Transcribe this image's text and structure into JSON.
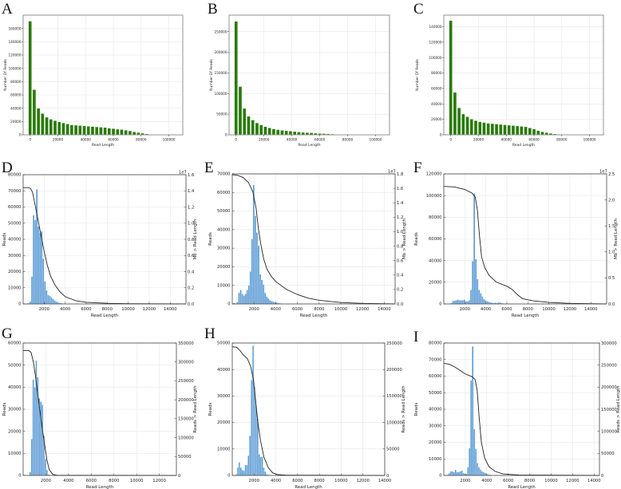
{
  "figure": {
    "panels": [
      {
        "id": "A",
        "letter": "A"
      },
      {
        "id": "B",
        "letter": "B"
      },
      {
        "id": "C",
        "letter": "C"
      },
      {
        "id": "D",
        "letter": "D"
      },
      {
        "id": "E",
        "letter": "E"
      },
      {
        "id": "F",
        "letter": "F"
      },
      {
        "id": "G",
        "letter": "G"
      },
      {
        "id": "H",
        "letter": "H"
      },
      {
        "id": "I",
        "letter": "I"
      }
    ]
  },
  "chart_data": [
    {
      "panel": "A",
      "type": "bar",
      "color": "#2a7a0a",
      "xlabel": "Read Length",
      "ylabel": "Number Of Reads",
      "xlim": [
        -5000,
        110000
      ],
      "ylim": [
        0,
        180000
      ],
      "xticks": [
        0,
        20000,
        40000,
        60000,
        80000,
        100000
      ],
      "yticks": [
        0,
        20000,
        40000,
        60000,
        80000,
        100000,
        120000,
        140000,
        160000
      ],
      "bin_width": 3000,
      "bin_start": 0,
      "values": [
        171000,
        68000,
        40000,
        32000,
        26500,
        23500,
        21500,
        19500,
        18000,
        16500,
        15000,
        14500,
        14000,
        13500,
        13000,
        12500,
        12000,
        11500,
        11000,
        10000,
        9500,
        8500,
        8000,
        7000,
        6000,
        4500,
        3500,
        2500,
        1500,
        1000,
        600,
        300,
        100
      ]
    },
    {
      "panel": "B",
      "type": "bar",
      "color": "#2a7a0a",
      "xlabel": "Read Length",
      "ylabel": "Number Of Reads",
      "xlim": [
        -5000,
        110000
      ],
      "ylim": [
        0,
        290000
      ],
      "xticks": [
        0,
        20000,
        40000,
        60000,
        80000,
        100000
      ],
      "yticks": [
        0,
        50000,
        100000,
        150000,
        200000,
        250000
      ],
      "bin_width": 3000,
      "bin_start": 0,
      "values": [
        275000,
        117000,
        64000,
        45000,
        36000,
        29000,
        24000,
        20000,
        17000,
        14500,
        12500,
        11000,
        10000,
        9000,
        8000,
        7000,
        6000,
        5500,
        5000,
        4000,
        3500,
        3000,
        2500,
        2000,
        1500,
        1000,
        500,
        300,
        100
      ]
    },
    {
      "panel": "C",
      "type": "bar",
      "color": "#2a7a0a",
      "xlabel": "Read Length",
      "ylabel": "Number Of Reads",
      "xlim": [
        -5000,
        110000
      ],
      "ylim": [
        0,
        155000
      ],
      "xticks": [
        0,
        20000,
        40000,
        60000,
        80000,
        100000
      ],
      "yticks": [
        0,
        20000,
        40000,
        60000,
        80000,
        100000,
        120000,
        140000
      ],
      "bin_width": 3000,
      "bin_start": 0,
      "values": [
        148000,
        55000,
        35000,
        27000,
        23500,
        20500,
        18500,
        17000,
        16000,
        15000,
        14500,
        14000,
        13500,
        13000,
        12500,
        12000,
        11500,
        11000,
        10500,
        9000,
        7500,
        5500,
        4000,
        3000,
        2000,
        1200,
        600,
        300,
        100
      ]
    },
    {
      "panel": "D",
      "type": "bar+line",
      "color": "#5b9bd5",
      "xlabel": "Read Length",
      "ylabel": "Reads",
      "y2label": "Mb > Read Length",
      "y2_offset": "1e7",
      "xlim": [
        0,
        15500
      ],
      "ylim": [
        0,
        80000
      ],
      "y2lim": [
        0,
        1.6
      ],
      "xticks": [
        2000,
        4000,
        6000,
        8000,
        10000,
        12000,
        14000
      ],
      "yticks": [
        0,
        10000,
        20000,
        30000,
        40000,
        50000,
        60000,
        70000,
        80000
      ],
      "y2ticks": [
        0.0,
        0.2,
        0.4,
        0.6,
        0.8,
        1.0,
        1.2,
        1.4,
        1.6
      ],
      "bin_width": 155,
      "bin_start": 450,
      "values": [
        500,
        1500,
        17000,
        55000,
        52000,
        71000,
        48000,
        44000,
        45000,
        28000,
        14000,
        8500,
        5500,
        5000,
        4000,
        3000,
        2200,
        1500,
        1000,
        700,
        500,
        350,
        250,
        150,
        100
      ],
      "line": [
        [
          0,
          1.44
        ],
        [
          500,
          1.44
        ],
        [
          700,
          1.43
        ],
        [
          900,
          1.38
        ],
        [
          1100,
          1.25
        ],
        [
          1400,
          1.05
        ],
        [
          1700,
          0.85
        ],
        [
          2000,
          0.65
        ],
        [
          2300,
          0.48
        ],
        [
          2600,
          0.35
        ],
        [
          3000,
          0.24
        ],
        [
          3500,
          0.15
        ],
        [
          4000,
          0.09
        ],
        [
          5000,
          0.04
        ],
        [
          6000,
          0.02
        ],
        [
          8000,
          0.008
        ],
        [
          10000,
          0.003
        ],
        [
          15500,
          0.0
        ]
      ]
    },
    {
      "panel": "E",
      "type": "bar+line",
      "color": "#5b9bd5",
      "xlabel": "Read Length",
      "ylabel": "Reads",
      "y2label": "Mb > Read Length",
      "y2_offset": "1e7",
      "xlim": [
        0,
        15000
      ],
      "ylim": [
        0,
        70000
      ],
      "y2lim": [
        0,
        1.8
      ],
      "xticks": [
        2000,
        4000,
        6000,
        8000,
        10000,
        12000,
        14000
      ],
      "yticks": [
        0,
        10000,
        20000,
        30000,
        40000,
        50000,
        60000,
        70000
      ],
      "y2ticks": [
        0.0,
        0.2,
        0.4,
        0.6,
        0.8,
        1.0,
        1.2,
        1.4,
        1.6,
        1.8
      ],
      "bin_width": 150,
      "bin_start": 100,
      "values": [
        500,
        300,
        1000,
        6000,
        7500,
        5500,
        4500,
        5500,
        7500,
        10000,
        17500,
        35000,
        64000,
        47500,
        38500,
        31500,
        16000,
        13000,
        10500,
        6000,
        4000,
        3000,
        2000,
        1600,
        1300,
        1000,
        800,
        600,
        400,
        300,
        200,
        150,
        100
      ],
      "line": [
        [
          0,
          1.79
        ],
        [
          500,
          1.78
        ],
        [
          1000,
          1.75
        ],
        [
          1500,
          1.68
        ],
        [
          1900,
          1.55
        ],
        [
          2200,
          1.32
        ],
        [
          2400,
          1.05
        ],
        [
          2600,
          0.85
        ],
        [
          2900,
          0.62
        ],
        [
          3200,
          0.48
        ],
        [
          3600,
          0.38
        ],
        [
          4000,
          0.31
        ],
        [
          5000,
          0.2
        ],
        [
          6000,
          0.13
        ],
        [
          7000,
          0.08
        ],
        [
          8000,
          0.05
        ],
        [
          10000,
          0.02
        ],
        [
          12000,
          0.008
        ],
        [
          15000,
          0.0
        ]
      ]
    },
    {
      "panel": "F",
      "type": "bar+line",
      "color": "#5b9bd5",
      "xlabel": "Read Length",
      "ylabel": "Reads",
      "y2label": "Mb > Read Length",
      "y2_offset": "1e7",
      "xlim": [
        0,
        15500
      ],
      "ylim": [
        0,
        120000
      ],
      "y2lim": [
        0,
        2.5
      ],
      "xticks": [
        2000,
        4000,
        6000,
        8000,
        10000,
        12000,
        14000
      ],
      "yticks": [
        0,
        20000,
        40000,
        60000,
        80000,
        100000,
        120000
      ],
      "y2ticks": [
        0.0,
        0.5,
        1.0,
        1.5,
        2.0,
        2.5
      ],
      "bin_width": 155,
      "bin_start": 650,
      "values": [
        1000,
        3000,
        3000,
        3500,
        4000,
        3500,
        3500,
        3500,
        4000,
        2500,
        2500,
        3500,
        13000,
        39500,
        102000,
        41500,
        23000,
        13000,
        10000,
        7000,
        4500,
        3500,
        2500,
        2000,
        1500,
        1200,
        1000,
        1200,
        800,
        1500,
        1200,
        800,
        500,
        300,
        200,
        150,
        100
      ],
      "line": [
        [
          0,
          2.26
        ],
        [
          1000,
          2.25
        ],
        [
          2000,
          2.2
        ],
        [
          2700,
          2.13
        ],
        [
          3000,
          2.05
        ],
        [
          3200,
          1.8
        ],
        [
          3400,
          1.3
        ],
        [
          3600,
          0.9
        ],
        [
          3900,
          0.7
        ],
        [
          4300,
          0.55
        ],
        [
          5000,
          0.42
        ],
        [
          6000,
          0.34
        ],
        [
          6500,
          0.28
        ],
        [
          7000,
          0.18
        ],
        [
          7500,
          0.1
        ],
        [
          8500,
          0.06
        ],
        [
          10000,
          0.03
        ],
        [
          12000,
          0.01
        ],
        [
          15500,
          0.0
        ]
      ]
    },
    {
      "panel": "G",
      "type": "bar+line",
      "color": "#5b9bd5",
      "xlabel": "Read Length",
      "ylabel": "Reads",
      "y2label": "Reads > Read Length",
      "xlim": [
        0,
        13500
      ],
      "ylim": [
        0,
        60000
      ],
      "y2lim": [
        0,
        350000
      ],
      "xticks": [
        2000,
        4000,
        6000,
        8000,
        10000,
        12000
      ],
      "yticks": [
        0,
        10000,
        20000,
        30000,
        40000,
        50000,
        60000
      ],
      "y2ticks": [
        0,
        50000,
        100000,
        150000,
        200000,
        250000,
        300000,
        350000
      ],
      "bin_width": 135,
      "bin_start": 550,
      "values": [
        1500,
        16500,
        43500,
        40000,
        52000,
        44500,
        35000,
        33500,
        32000,
        18000,
        7500,
        2500,
        500
      ],
      "line": [
        [
          0,
          330000
        ],
        [
          500,
          330000
        ],
        [
          700,
          325000
        ],
        [
          900,
          300000
        ],
        [
          1100,
          260000
        ],
        [
          1300,
          210000
        ],
        [
          1500,
          165000
        ],
        [
          1700,
          120000
        ],
        [
          1900,
          80000
        ],
        [
          2100,
          40000
        ],
        [
          2300,
          15000
        ],
        [
          2600,
          3000
        ],
        [
          3000,
          500
        ],
        [
          13500,
          0
        ]
      ]
    },
    {
      "panel": "H",
      "type": "bar+line",
      "color": "#5b9bd5",
      "xlabel": "Read Length",
      "ylabel": "Reads",
      "y2label": "Reads > Read Length",
      "xlim": [
        0,
        14000
      ],
      "ylim": [
        0,
        50000
      ],
      "y2lim": [
        0,
        250000
      ],
      "xticks": [
        2000,
        4000,
        6000,
        8000,
        10000,
        12000,
        14000
      ],
      "yticks": [
        0,
        10000,
        20000,
        30000,
        40000,
        50000
      ],
      "y2ticks": [
        0,
        50000,
        100000,
        150000,
        200000,
        250000
      ],
      "bin_width": 140,
      "bin_start": 300,
      "values": [
        500,
        3000,
        5000,
        3000,
        2000,
        1800,
        4000,
        4000,
        7500,
        15000,
        36000,
        49000,
        33500,
        26500,
        21500,
        8000,
        7000,
        7000,
        3000,
        1500,
        500,
        300,
        200
      ],
      "line": [
        [
          0,
          243000
        ],
        [
          400,
          242000
        ],
        [
          700,
          236000
        ],
        [
          1000,
          228000
        ],
        [
          1400,
          220000
        ],
        [
          1700,
          205000
        ],
        [
          1950,
          180000
        ],
        [
          2150,
          140000
        ],
        [
          2350,
          100000
        ],
        [
          2600,
          65000
        ],
        [
          2900,
          35000
        ],
        [
          3300,
          15000
        ],
        [
          3700,
          5000
        ],
        [
          4200,
          1500
        ],
        [
          5000,
          500
        ],
        [
          14000,
          0
        ]
      ]
    },
    {
      "panel": "I",
      "type": "bar+line",
      "color": "#5b9bd5",
      "xlabel": "Read Length",
      "ylabel": "Reads",
      "y2label": "Reads > Read Length",
      "xlim": [
        0,
        14500
      ],
      "ylim": [
        0,
        80000
      ],
      "y2lim": [
        0,
        300000
      ],
      "xticks": [
        2000,
        4000,
        6000,
        8000,
        10000,
        12000,
        14000
      ],
      "yticks": [
        0,
        10000,
        20000,
        30000,
        40000,
        50000,
        60000,
        70000,
        80000
      ],
      "y2ticks": [
        0,
        50000,
        100000,
        150000,
        200000,
        250000,
        300000
      ],
      "bin_width": 145,
      "bin_start": 300,
      "values": [
        500,
        1500,
        2500,
        2500,
        2000,
        3500,
        2000,
        2000,
        2500,
        3000,
        1500,
        1000,
        1000,
        5000,
        16500,
        57500,
        78000,
        28000,
        16000,
        7500,
        5000,
        3500,
        2500,
        2000,
        1500,
        1000,
        700,
        500,
        300,
        200
      ],
      "line": [
        [
          0,
          254000
        ],
        [
          500,
          252000
        ],
        [
          1000,
          246000
        ],
        [
          1500,
          238000
        ],
        [
          2000,
          230000
        ],
        [
          2600,
          224000
        ],
        [
          2900,
          218000
        ],
        [
          3100,
          195000
        ],
        [
          3300,
          130000
        ],
        [
          3500,
          75000
        ],
        [
          3800,
          40000
        ],
        [
          4200,
          20000
        ],
        [
          4800,
          9000
        ],
        [
          5500,
          3500
        ],
        [
          7000,
          1000
        ],
        [
          14500,
          0
        ]
      ]
    }
  ]
}
